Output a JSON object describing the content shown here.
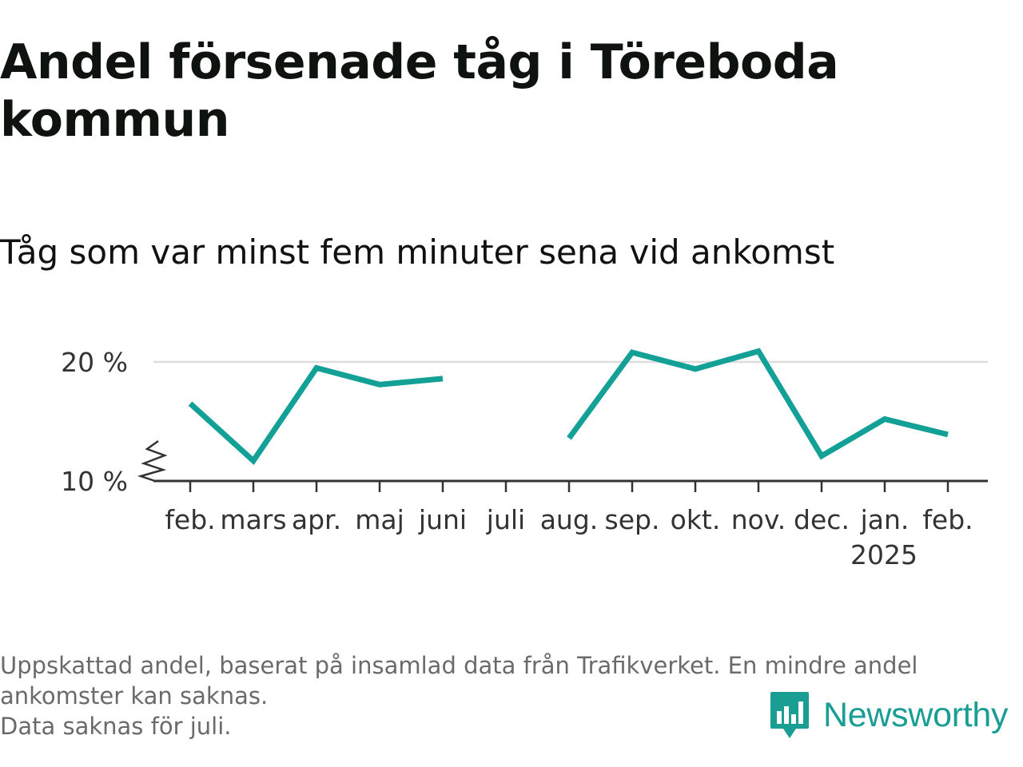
{
  "title": "Andel försenade tåg i Töreboda kommun",
  "subtitle": "Tåg som var minst fem minuter sena vid ankomst",
  "footnote": {
    "line1": "Uppskattad andel, baserat på insamlad data från Trafikverket. En mindre andel",
    "line2": "ankomster kan saknas.",
    "line3": "Data saknas för juli."
  },
  "brand": {
    "name": "Newsworthy",
    "color": "#1a9e94",
    "icon": "newsworthy-logo-icon"
  },
  "chart_data": {
    "type": "line",
    "categories": [
      "feb.",
      "mars",
      "apr.",
      "maj",
      "juni",
      "juli",
      "aug.",
      "sep.",
      "okt.",
      "nov.",
      "dec.",
      "jan.",
      "feb."
    ],
    "year_label": "2025",
    "series": [
      {
        "color": "#13a097",
        "values": [
          16.5,
          11.7,
          19.5,
          18.1,
          18.6,
          null,
          13.6,
          20.8,
          19.4,
          20.9,
          12.1,
          15.2,
          13.9
        ]
      }
    ],
    "yticks": [
      10,
      20
    ],
    "ytick_labels": [
      "10 %",
      "20 %"
    ],
    "ylim": [
      10,
      21
    ],
    "axis_break": true,
    "grid": true,
    "missing": [
      "juli"
    ]
  }
}
